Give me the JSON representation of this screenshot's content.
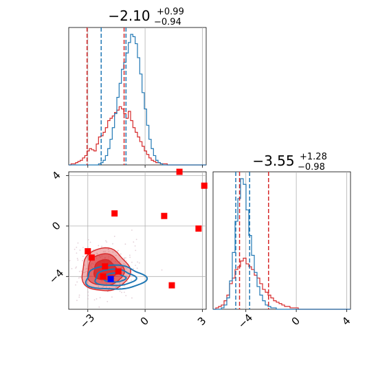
{
  "chart_data": {
    "type": "corner",
    "colors": {
      "red": "#d62728",
      "blue": "#1f77b4",
      "marker_red": "#ff0000",
      "marker_blue": "#0000ff",
      "grid": "#b0b0b0"
    },
    "x_param": {
      "title_base": "−2.10",
      "title_sup": "+0.99",
      "title_sub": "−0.94",
      "range": [
        -4.0,
        3.2
      ],
      "ticks": [
        -3,
        0,
        3
      ],
      "tick_labels": [
        "−3",
        "0",
        "3"
      ]
    },
    "y_param": {
      "title_base": "−3.55",
      "title_sup": "+1.28",
      "title_sub": "−0.98",
      "range": [
        -6.6,
        4.3
      ],
      "ticks": [
        -4,
        0,
        4
      ],
      "tick_labels": [
        "−4",
        "0",
        "4"
      ]
    },
    "hist_x": {
      "bins": [
        -4.0,
        3.2
      ],
      "red_counts": [
        0,
        1,
        1,
        2,
        3,
        4,
        6,
        8,
        12,
        14,
        13,
        12,
        18,
        24,
        25,
        28,
        32,
        38,
        40,
        42,
        45,
        47,
        50,
        48,
        44,
        40,
        46,
        38,
        32,
        28,
        24,
        20,
        16,
        12,
        9,
        6,
        4,
        3,
        2,
        2,
        1,
        1,
        1,
        0,
        0,
        0,
        0,
        0,
        0,
        0,
        0,
        0,
        0,
        0,
        0,
        0,
        0,
        0,
        0,
        0
      ],
      "blue_counts": [
        0,
        0,
        0,
        0,
        0,
        0,
        0,
        0,
        0,
        0,
        0,
        0,
        0,
        1,
        2,
        4,
        8,
        14,
        22,
        32,
        44,
        58,
        70,
        82,
        88,
        96,
        105,
        112,
        110,
        104,
        92,
        78,
        62,
        48,
        34,
        22,
        14,
        8,
        4,
        2,
        1,
        0,
        0,
        0,
        0,
        0,
        0,
        0,
        0,
        0,
        0,
        0,
        0,
        0,
        0,
        0,
        0,
        0,
        0,
        0
      ],
      "red_quantiles": [
        -3.04,
        -1.1
      ],
      "blue_quantiles": [
        -2.3,
        -1.0
      ]
    },
    "hist_y": {
      "bins": [
        -6.6,
        4.3
      ],
      "red_counts": [
        0,
        1,
        2,
        3,
        6,
        10,
        18,
        22,
        28,
        30,
        34,
        36,
        32,
        30,
        28,
        24,
        22,
        18,
        14,
        12,
        10,
        8,
        6,
        5,
        4,
        3,
        2,
        2,
        1,
        1,
        1,
        0,
        0,
        0,
        0,
        0,
        0,
        0,
        0,
        0,
        0,
        0,
        0,
        0,
        0,
        0,
        0,
        0,
        0,
        0
      ],
      "blue_counts": [
        0,
        0,
        0,
        1,
        3,
        8,
        20,
        40,
        62,
        78,
        92,
        88,
        70,
        52,
        38,
        26,
        16,
        10,
        6,
        3,
        2,
        1,
        1,
        0,
        0,
        0,
        0,
        0,
        0,
        0,
        0,
        0,
        0,
        0,
        0,
        0,
        0,
        0,
        0,
        0,
        0,
        0,
        0,
        0,
        0,
        0,
        0,
        0,
        0,
        0
      ],
      "red_quantiles": [
        -4.5,
        -2.2
      ],
      "blue_quantiles": [
        -4.8,
        -3.7
      ]
    },
    "scatter_markers": [
      {
        "x": -3.0,
        "y": -2.0,
        "color": "red"
      },
      {
        "x": -2.8,
        "y": -2.5,
        "color": "red"
      },
      {
        "x": -2.2,
        "y": -4.0,
        "color": "red"
      },
      {
        "x": -2.1,
        "y": -3.2,
        "color": "red"
      },
      {
        "x": -1.6,
        "y": 1.0,
        "color": "red"
      },
      {
        "x": -1.4,
        "y": -3.6,
        "color": "red"
      },
      {
        "x": 1.0,
        "y": 0.8,
        "color": "red"
      },
      {
        "x": 1.4,
        "y": -4.7,
        "color": "red"
      },
      {
        "x": 1.8,
        "y": 4.3,
        "color": "red"
      },
      {
        "x": 2.8,
        "y": -0.2,
        "color": "red"
      },
      {
        "x": 3.1,
        "y": 3.2,
        "color": "red"
      },
      {
        "x": -1.8,
        "y": -4.2,
        "color": "blue"
      }
    ],
    "contours_red": {
      "center": [
        -2.1,
        -3.5
      ],
      "levels": [
        {
          "rx": 1.25,
          "ry": 1.7,
          "opacity": 0.35
        },
        {
          "rx": 0.95,
          "ry": 1.25,
          "opacity": 0.55
        },
        {
          "rx": 0.6,
          "ry": 0.8,
          "opacity": 0.85
        }
      ]
    },
    "contours_blue": {
      "center": [
        -1.6,
        -4.1
      ],
      "levels": [
        {
          "rx": 1.55,
          "ry": 0.95
        },
        {
          "rx": 1.05,
          "ry": 0.65
        },
        {
          "rx": 0.55,
          "ry": 0.35
        }
      ]
    }
  }
}
